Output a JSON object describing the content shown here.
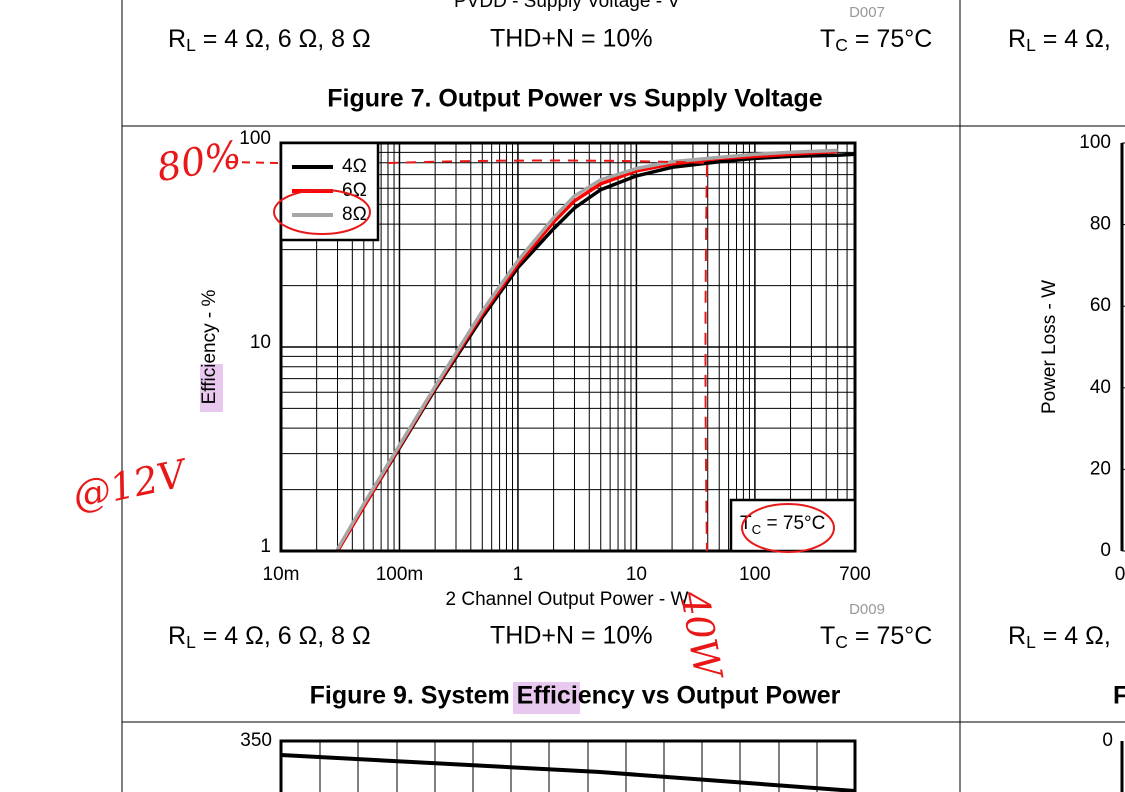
{
  "top_panel": {
    "axis_label": "PVDD - Supply Voltage - V",
    "code": "D007",
    "cond_rl": {
      "main": "R",
      "sub": "L",
      "rest": " = 4 Ω, 6 Ω, 8 Ω"
    },
    "cond_thd": "THD+N = 10%",
    "cond_tc": {
      "main": "T",
      "sub": "C",
      "rest": " = 75°C"
    },
    "caption": "Figure 7. Output Power vs Supply Voltage"
  },
  "chart_data": {
    "type": "line",
    "xlabel": "2 Channel Output Power - W",
    "ylabel": "Efficiency - %",
    "code": "D009",
    "x": [
      0.03,
      0.05,
      0.1,
      0.2,
      0.5,
      1,
      2,
      3,
      5,
      10,
      20,
      50,
      100,
      200,
      500,
      700
    ],
    "series": [
      {
        "name": "4Ω",
        "color": "#000000",
        "values": [
          1,
          1.65,
          3.2,
          6.2,
          14,
          24.5,
          38,
          48,
          59,
          69,
          76,
          81,
          84,
          86,
          87,
          88
        ]
      },
      {
        "name": "6Ω",
        "color": "#ff0000",
        "values": [
          1,
          1.65,
          3.25,
          6.3,
          14.5,
          25.5,
          41,
          52,
          63,
          73,
          79,
          84,
          86,
          88,
          91,
          null
        ]
      },
      {
        "name": "8Ω",
        "color": "#a6a6a6",
        "values": [
          1.02,
          1.7,
          3.3,
          6.4,
          15,
          26.5,
          43,
          55,
          66,
          75,
          81,
          85,
          88,
          90,
          92,
          null
        ]
      }
    ],
    "xscale": "log",
    "yscale": "log",
    "xlim": [
      0.01,
      700
    ],
    "ylim": [
      1,
      100
    ],
    "xticks": [
      {
        "value": 0.01,
        "label": "10m"
      },
      {
        "value": 0.1,
        "label": "100m"
      },
      1,
      10,
      100,
      700
    ],
    "yticks": [
      1,
      10,
      100
    ],
    "grid": true,
    "minor_grid": true,
    "legend": "upper-left",
    "annotation": {
      "main": "T",
      "sub": "C",
      "rest": " = 75°C"
    },
    "cond_rl": {
      "main": "R",
      "sub": "L",
      "rest": " = 4 Ω, 6 Ω, 8 Ω"
    },
    "cond_thd": "THD+N = 10%",
    "cond_tc": {
      "main": "T",
      "sub": "C",
      "rest": " = 75°C"
    },
    "caption": "Figure 9. System Efficiency vs Output Power"
  },
  "right_panel": {
    "cond_top": {
      "main": "R",
      "sub": "L",
      "rest": " = 4 Ω,"
    },
    "ylabel": "Power Loss - W",
    "ylim": [
      0,
      100
    ],
    "yticks": [
      100,
      80,
      60,
      40,
      20,
      0
    ],
    "xtick": 0,
    "cond_bottom": {
      "main": "R",
      "sub": "L",
      "rest": " = 4 Ω,"
    },
    "caption": "F",
    "bottom_ytick": 0
  },
  "bottom_panel": {
    "ytick": 350
  },
  "annotations": {
    "efficiency": "80%",
    "voltage": "@12V",
    "power": "40W"
  }
}
